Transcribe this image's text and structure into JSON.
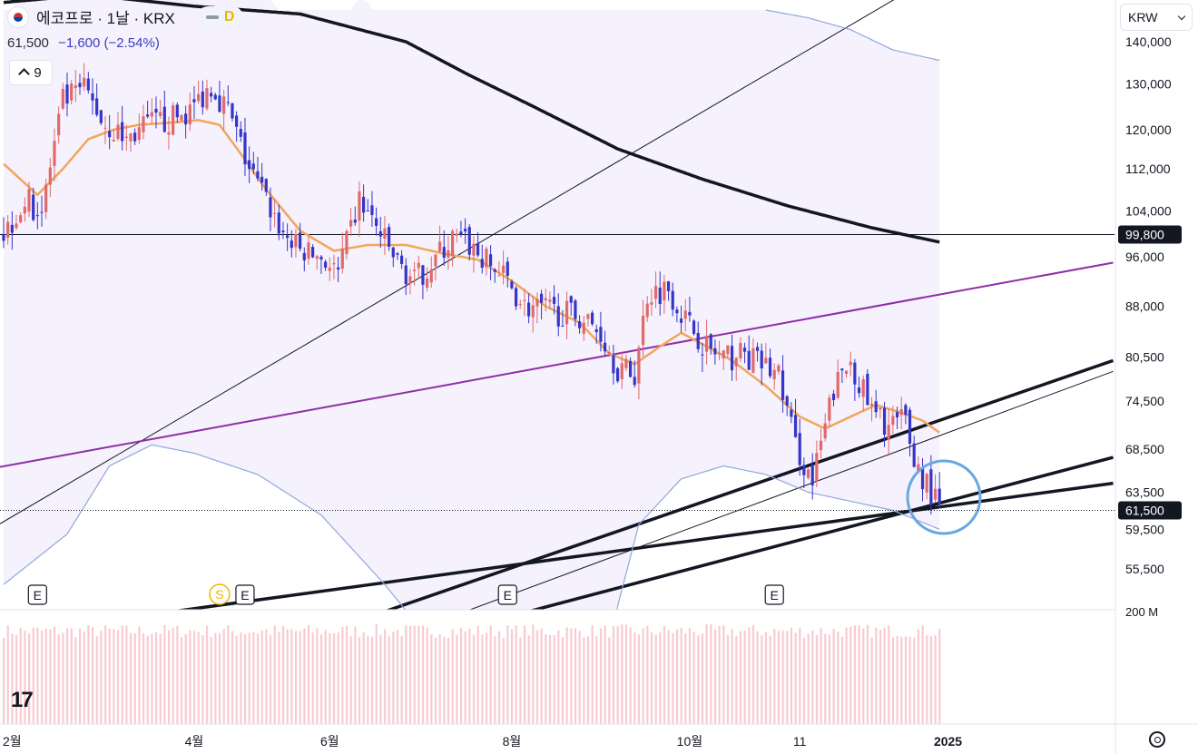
{
  "header": {
    "title": "에코프로 · 1날 · KRX",
    "interval_badge": "D",
    "last_price": "61,500",
    "change": "−1,600 (−2.54%)",
    "indicator_count": "9",
    "currency": "KRW",
    "flag_icon": "south-korea-flag-icon",
    "logo_icon": "tradingview-logo-icon",
    "settings_icon": "gear-icon"
  },
  "colors": {
    "up": "#e06a6a",
    "down": "#3535c8",
    "ma20": "#f2a65a",
    "ma200": "#131722",
    "bollinger": "#8da9dc",
    "purple_trend": "#8e2ea6",
    "circle": "#6aa6e0",
    "volume": "#f2a0ad"
  },
  "chart_data": {
    "type": "candlestick",
    "x_tick_labels": [
      "2월",
      "4월",
      "6월",
      "8월",
      "10월",
      "11",
      "2025"
    ],
    "y_tick_labels": [
      "140,000",
      "130,000",
      "120,000",
      "112,000",
      "104,000",
      "96,000",
      "88,000",
      "80,500",
      "74,500",
      "68,500",
      "63,500",
      "59,500",
      "55,500"
    ],
    "y_scale": "log",
    "ylim": [
      51500,
      145000
    ],
    "volume_axis_label": "200 M",
    "price_labels": [
      {
        "text": "99,800",
        "value": 99800,
        "style": "solid"
      },
      {
        "text": "61,500",
        "value": 61500,
        "style": "dotted"
      }
    ],
    "earnings_markers": [
      "E",
      "E",
      "E",
      "E"
    ],
    "dividend_markers": [
      "S"
    ],
    "candles_count": 222,
    "close_path": [
      [
        0,
        100000
      ],
      [
        5,
        106000
      ],
      [
        9,
        104000
      ],
      [
        14,
        126000
      ],
      [
        19,
        129000
      ],
      [
        24,
        121000
      ],
      [
        29,
        118000
      ],
      [
        34,
        121000
      ],
      [
        39,
        122000
      ],
      [
        44,
        124000
      ],
      [
        49,
        130000
      ],
      [
        53,
        124000
      ],
      [
        58,
        112000
      ],
      [
        62,
        106000
      ],
      [
        66,
        100000
      ],
      [
        70,
        97000
      ],
      [
        75,
        96000
      ],
      [
        79,
        93000
      ],
      [
        84,
        106000
      ],
      [
        88,
        101000
      ],
      [
        93,
        95000
      ],
      [
        97,
        92000
      ],
      [
        101,
        95000
      ],
      [
        106,
        99000
      ],
      [
        110,
        98000
      ],
      [
        114,
        95000
      ],
      [
        119,
        92000
      ],
      [
        123,
        88000
      ],
      [
        127,
        87500
      ],
      [
        132,
        87000
      ],
      [
        136,
        86500
      ],
      [
        141,
        84000
      ],
      [
        145,
        79000
      ],
      [
        149,
        78000
      ],
      [
        152,
        90000
      ],
      [
        157,
        91000
      ],
      [
        161,
        86000
      ],
      [
        166,
        82000
      ],
      [
        170,
        80000
      ],
      [
        174,
        81000
      ],
      [
        179,
        79500
      ],
      [
        183,
        78000
      ],
      [
        187,
        69000
      ],
      [
        191,
        64500
      ],
      [
        196,
        76000
      ],
      [
        200,
        80000
      ],
      [
        205,
        73000
      ],
      [
        209,
        71500
      ],
      [
        213,
        72000
      ],
      [
        215,
        67000
      ],
      [
        218,
        64500
      ],
      [
        221,
        61500
      ]
    ],
    "series": [
      {
        "label_key": "ma20",
        "path": [
          [
            0,
            113000
          ],
          [
            8,
            107000
          ],
          [
            14,
            112000
          ],
          [
            20,
            118000
          ],
          [
            26,
            120000
          ],
          [
            32,
            121000
          ],
          [
            40,
            121500
          ],
          [
            46,
            122000
          ],
          [
            51,
            121000
          ],
          [
            56,
            115000
          ],
          [
            62,
            108000
          ],
          [
            70,
            100500
          ],
          [
            78,
            97000
          ],
          [
            86,
            98000
          ],
          [
            95,
            98000
          ],
          [
            104,
            96500
          ],
          [
            112,
            95500
          ],
          [
            120,
            92000
          ],
          [
            128,
            88000
          ],
          [
            136,
            85500
          ],
          [
            143,
            81000
          ],
          [
            149,
            79500
          ],
          [
            155,
            82000
          ],
          [
            160,
            84000
          ],
          [
            166,
            82000
          ],
          [
            172,
            80000
          ],
          [
            180,
            76500
          ],
          [
            188,
            72500
          ],
          [
            194,
            71000
          ],
          [
            200,
            72500
          ],
          [
            206,
            74000
          ],
          [
            212,
            73000
          ],
          [
            217,
            72000
          ],
          [
            221,
            70500
          ]
        ]
      },
      {
        "label_key": "ma200",
        "path": [
          [
            0,
            150000
          ],
          [
            20,
            152000
          ],
          [
            45,
            149000
          ],
          [
            70,
            147000
          ],
          [
            95,
            140000
          ],
          [
            110,
            132000
          ],
          [
            125,
            125000
          ],
          [
            145,
            116000
          ],
          [
            165,
            110000
          ],
          [
            185,
            105000
          ],
          [
            205,
            101000
          ],
          [
            221,
            98500
          ]
        ]
      },
      {
        "label_key": "bollinger_upper",
        "path": [
          [
            180,
            148000
          ],
          [
            190,
            146000
          ],
          [
            200,
            143000
          ],
          [
            210,
            138000
          ],
          [
            221,
            135500
          ]
        ]
      },
      {
        "label_key": "bollinger_lower",
        "path": [
          [
            0,
            54000
          ],
          [
            15,
            59000
          ],
          [
            25,
            66500
          ],
          [
            35,
            69000
          ],
          [
            45,
            68000
          ],
          [
            60,
            65500
          ],
          [
            75,
            61000
          ],
          [
            90,
            54000
          ],
          [
            110,
            45000
          ],
          [
            130,
            40000
          ],
          [
            140,
            43000
          ],
          [
            145,
            52000
          ],
          [
            150,
            60000
          ],
          [
            160,
            65000
          ],
          [
            170,
            66500
          ],
          [
            180,
            65500
          ],
          [
            190,
            63500
          ],
          [
            200,
            62500
          ],
          [
            210,
            61500
          ],
          [
            221,
            59500
          ]
        ]
      }
    ],
    "trend_lines": [
      {
        "style": "thin",
        "from": [
          -5,
          59000
        ],
        "to": [
          231,
          165000
        ]
      },
      {
        "style": "purple",
        "from": [
          -5,
          66000
        ],
        "to": [
          262,
          95000
        ]
      },
      {
        "style": "horizontal",
        "value": 99800
      },
      {
        "style": "thick",
        "from": [
          40,
          51500
        ],
        "to": [
          262,
          64500
        ]
      },
      {
        "style": "thick",
        "from": [
          90,
          51500
        ],
        "to": [
          262,
          80000
        ]
      },
      {
        "style": "thin",
        "from": [
          109,
          51500
        ],
        "to": [
          262,
          78500
        ]
      },
      {
        "style": "thick",
        "from": [
          -5,
          40000
        ],
        "to": [
          262,
          67500
        ]
      }
    ]
  }
}
